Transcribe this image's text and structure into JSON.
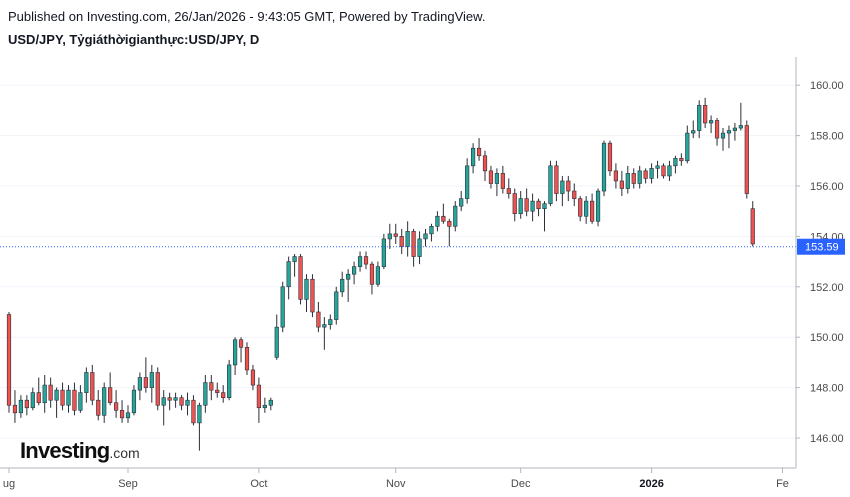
{
  "header": {
    "published": "Published on Investing.com, 26/Jan/2026 - 9:43:05 GMT, Powered by TradingView.",
    "title": "USD/JPY, Tỷgiáthờigianthực:USD/JPY, D"
  },
  "logo": {
    "main": "Investing",
    "domain": ".com"
  },
  "colors": {
    "up": "#26a69a",
    "down": "#ef5350",
    "current_price_line": "#2962ff",
    "price_label_bg": "#2962ff"
  },
  "chart_data": {
    "type": "candlestick",
    "symbol": "USD/JPY",
    "interval": "D",
    "ylim": [
      145.0,
      161.0
    ],
    "y_ticks": [
      146.0,
      148.0,
      150.0,
      152.0,
      154.0,
      156.0,
      158.0,
      160.0
    ],
    "y_tick_labels": [
      "146.00",
      "148.00",
      "150.00",
      "152.00",
      "154.00",
      "156.00",
      "158.00",
      "160.00"
    ],
    "current_price": 153.59,
    "current_price_label": "153.59",
    "x_tick_labels": [
      {
        "label": "ug",
        "index": 0
      },
      {
        "label": "Sep",
        "index": 20
      },
      {
        "label": "Oct",
        "index": 42
      },
      {
        "label": "Nov",
        "index": 65
      },
      {
        "label": "Dec",
        "index": 86
      },
      {
        "label": "2026",
        "index": 108,
        "bold": true
      },
      {
        "label": "Fe",
        "index": 130
      }
    ],
    "candles": [
      [
        150.9,
        151.0,
        147.0,
        147.3
      ],
      [
        147.3,
        147.9,
        146.6,
        147.0
      ],
      [
        147.0,
        147.7,
        146.8,
        147.5
      ],
      [
        147.5,
        147.7,
        146.9,
        147.2
      ],
      [
        147.2,
        148.0,
        147.1,
        147.8
      ],
      [
        147.8,
        148.4,
        147.3,
        147.4
      ],
      [
        147.4,
        148.5,
        147.0,
        148.1
      ],
      [
        148.1,
        148.4,
        147.2,
        147.5
      ],
      [
        147.5,
        148.0,
        146.8,
        147.9
      ],
      [
        147.9,
        148.2,
        147.1,
        147.3
      ],
      [
        147.3,
        148.1,
        147.0,
        147.9
      ],
      [
        147.9,
        148.2,
        146.9,
        147.1
      ],
      [
        147.1,
        148.1,
        147.0,
        147.8
      ],
      [
        147.8,
        148.8,
        147.4,
        148.6
      ],
      [
        148.6,
        148.9,
        147.3,
        147.5
      ],
      [
        147.5,
        147.9,
        146.7,
        146.9
      ],
      [
        146.9,
        148.2,
        146.6,
        148.0
      ],
      [
        148.0,
        148.6,
        147.3,
        147.4
      ],
      [
        147.4,
        147.9,
        146.8,
        147.1
      ],
      [
        147.1,
        147.5,
        146.6,
        146.8
      ],
      [
        146.8,
        147.3,
        146.6,
        147.0
      ],
      [
        147.0,
        148.1,
        146.9,
        147.9
      ],
      [
        147.9,
        148.6,
        147.5,
        148.4
      ],
      [
        148.4,
        149.2,
        147.8,
        148.0
      ],
      [
        148.0,
        148.9,
        147.4,
        148.6
      ],
      [
        148.6,
        148.8,
        147.1,
        147.3
      ],
      [
        147.3,
        147.9,
        146.5,
        147.6
      ],
      [
        147.6,
        147.8,
        147.1,
        147.5
      ],
      [
        147.5,
        147.8,
        147.2,
        147.6
      ],
      [
        147.6,
        147.7,
        147.1,
        147.3
      ],
      [
        147.3,
        147.8,
        146.9,
        147.5
      ],
      [
        147.5,
        147.7,
        146.5,
        146.6
      ],
      [
        146.6,
        147.4,
        145.5,
        147.3
      ],
      [
        147.3,
        148.5,
        147.0,
        148.2
      ],
      [
        148.2,
        148.5,
        147.5,
        147.9
      ],
      [
        147.9,
        148.2,
        147.6,
        147.8
      ],
      [
        147.8,
        148.1,
        147.4,
        147.6
      ],
      [
        147.6,
        149.1,
        147.5,
        148.9
      ],
      [
        148.9,
        150.0,
        148.5,
        149.9
      ],
      [
        149.9,
        150.0,
        149.0,
        149.6
      ],
      [
        149.6,
        149.8,
        148.5,
        148.7
      ],
      [
        148.7,
        148.9,
        147.9,
        148.1
      ],
      [
        148.1,
        148.4,
        146.6,
        147.2
      ],
      [
        147.2,
        147.6,
        147.0,
        147.3
      ],
      [
        147.3,
        147.6,
        147.1,
        147.5
      ],
      [
        149.2,
        150.9,
        149.1,
        150.4
      ],
      [
        150.4,
        152.2,
        150.2,
        152.0
      ],
      [
        152.0,
        153.2,
        151.5,
        153.0
      ],
      [
        153.0,
        153.3,
        152.4,
        153.2
      ],
      [
        153.2,
        153.3,
        151.3,
        151.5
      ],
      [
        151.5,
        152.5,
        151.0,
        152.3
      ],
      [
        152.3,
        152.5,
        150.8,
        151.0
      ],
      [
        151.0,
        151.4,
        150.2,
        150.4
      ],
      [
        150.4,
        150.8,
        149.5,
        150.5
      ],
      [
        150.5,
        150.9,
        150.3,
        150.7
      ],
      [
        150.7,
        152.0,
        150.5,
        151.8
      ],
      [
        151.8,
        152.6,
        151.6,
        152.3
      ],
      [
        152.3,
        152.7,
        151.4,
        152.5
      ],
      [
        152.5,
        153.0,
        152.1,
        152.8
      ],
      [
        152.8,
        153.4,
        152.6,
        153.2
      ],
      [
        153.2,
        153.4,
        152.7,
        152.9
      ],
      [
        152.9,
        153.0,
        151.7,
        152.1
      ],
      [
        152.1,
        153.0,
        152.0,
        152.8
      ],
      [
        152.8,
        154.1,
        152.7,
        153.9
      ],
      [
        153.9,
        154.5,
        153.5,
        154.1
      ],
      [
        154.1,
        154.5,
        153.7,
        154.0
      ],
      [
        154.0,
        154.3,
        153.3,
        153.6
      ],
      [
        153.6,
        154.6,
        153.2,
        154.2
      ],
      [
        154.2,
        154.3,
        152.8,
        153.2
      ],
      [
        153.2,
        154.2,
        152.9,
        153.9
      ],
      [
        153.9,
        154.3,
        153.6,
        154.1
      ],
      [
        154.1,
        154.5,
        153.8,
        154.4
      ],
      [
        154.4,
        155.0,
        154.2,
        154.8
      ],
      [
        154.8,
        155.3,
        154.5,
        154.6
      ],
      [
        154.6,
        154.7,
        153.6,
        154.4
      ],
      [
        154.4,
        155.4,
        154.2,
        155.2
      ],
      [
        155.2,
        155.8,
        155.0,
        155.5
      ],
      [
        155.5,
        157.1,
        155.3,
        156.8
      ],
      [
        156.8,
        157.7,
        156.5,
        157.5
      ],
      [
        157.5,
        157.9,
        157.0,
        157.2
      ],
      [
        157.2,
        157.4,
        156.2,
        156.6
      ],
      [
        156.6,
        156.8,
        155.9,
        156.1
      ],
      [
        156.1,
        156.7,
        155.6,
        156.5
      ],
      [
        156.5,
        156.8,
        155.7,
        155.9
      ],
      [
        155.9,
        156.3,
        155.5,
        155.7
      ],
      [
        155.7,
        155.9,
        154.6,
        154.9
      ],
      [
        154.9,
        155.8,
        154.7,
        155.5
      ],
      [
        155.5,
        155.9,
        154.8,
        155.0
      ],
      [
        155.0,
        155.7,
        154.6,
        155.4
      ],
      [
        155.4,
        155.5,
        154.8,
        155.1
      ],
      [
        155.1,
        155.4,
        154.2,
        155.3
      ],
      [
        155.3,
        157.0,
        155.2,
        156.8
      ],
      [
        156.8,
        157.0,
        155.4,
        155.7
      ],
      [
        155.7,
        156.4,
        155.2,
        156.2
      ],
      [
        156.2,
        156.4,
        155.4,
        155.8
      ],
      [
        155.8,
        156.1,
        155.2,
        155.5
      ],
      [
        155.5,
        155.6,
        154.6,
        154.8
      ],
      [
        154.8,
        155.6,
        154.5,
        155.4
      ],
      [
        155.4,
        155.7,
        154.5,
        154.6
      ],
      [
        154.6,
        155.9,
        154.4,
        155.8
      ],
      [
        155.8,
        157.8,
        155.6,
        157.7
      ],
      [
        157.7,
        157.8,
        156.4,
        156.6
      ],
      [
        156.6,
        156.9,
        155.9,
        156.2
      ],
      [
        156.2,
        156.6,
        155.6,
        155.9
      ],
      [
        155.9,
        156.8,
        155.7,
        156.5
      ],
      [
        156.5,
        156.7,
        155.9,
        156.1
      ],
      [
        156.1,
        156.8,
        155.9,
        156.6
      ],
      [
        156.6,
        156.7,
        156.1,
        156.3
      ],
      [
        156.3,
        156.9,
        156.1,
        156.7
      ],
      [
        156.7,
        157.0,
        156.3,
        156.8
      ],
      [
        156.8,
        156.9,
        156.3,
        156.4
      ],
      [
        156.4,
        157.0,
        156.2,
        156.8
      ],
      [
        156.8,
        157.2,
        156.5,
        157.1
      ],
      [
        157.1,
        157.3,
        156.8,
        157.0
      ],
      [
        157.0,
        158.4,
        156.9,
        158.1
      ],
      [
        158.1,
        158.6,
        157.9,
        158.2
      ],
      [
        158.2,
        159.4,
        157.9,
        159.2
      ],
      [
        159.2,
        159.5,
        158.3,
        158.5
      ],
      [
        158.5,
        158.8,
        158.1,
        158.6
      ],
      [
        158.6,
        158.7,
        157.6,
        157.9
      ],
      [
        157.9,
        158.3,
        157.4,
        158.1
      ],
      [
        158.1,
        158.4,
        157.5,
        158.2
      ],
      [
        158.2,
        158.5,
        157.8,
        158.3
      ],
      [
        158.3,
        159.3,
        158.2,
        158.4
      ],
      [
        158.4,
        158.6,
        155.5,
        155.7
      ],
      [
        155.1,
        155.4,
        153.6,
        153.7
      ]
    ]
  }
}
